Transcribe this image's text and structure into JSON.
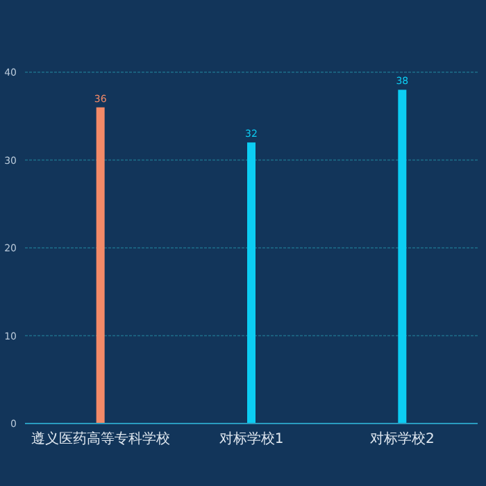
{
  "chart_data": {
    "type": "bar",
    "categories": [
      "遵义医药高等专科学校",
      "对标学校1",
      "对标学校2"
    ],
    "values": [
      36,
      32,
      38
    ],
    "colors": [
      "#f38a68",
      "#0ccdf3",
      "#0ccdf3"
    ],
    "ylim": [
      0,
      40
    ],
    "yticks": [
      0,
      10,
      20,
      30,
      40
    ],
    "grid": "y",
    "data_labels": true
  }
}
